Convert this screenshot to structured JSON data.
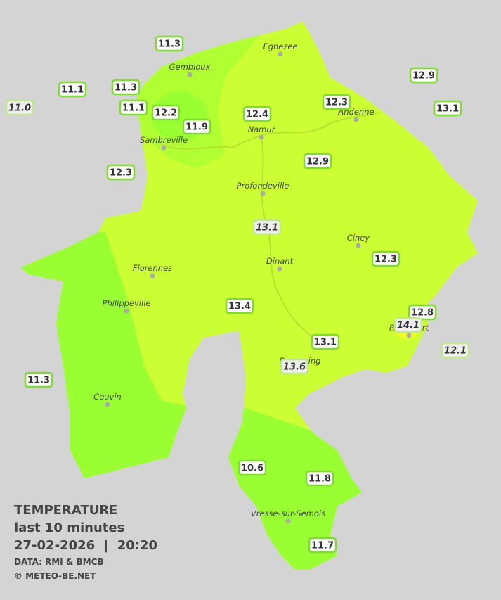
{
  "map": {
    "stations": [
      {
        "value": "11.3",
        "italic": false
      },
      {
        "value": "11.1",
        "italic": false
      },
      {
        "value": "11.3",
        "italic": false
      },
      {
        "value": "11.0",
        "italic": true
      },
      {
        "value": "11.1",
        "italic": false
      },
      {
        "value": "12.2",
        "italic": false
      },
      {
        "value": "11.9",
        "italic": false
      },
      {
        "value": "12.4",
        "italic": false
      },
      {
        "value": "12.3",
        "italic": false
      },
      {
        "value": "12.9",
        "italic": false
      },
      {
        "value": "13.1",
        "italic": false
      },
      {
        "value": "12.3",
        "italic": false
      },
      {
        "value": "12.9",
        "italic": false
      },
      {
        "value": "13.1",
        "italic": true
      },
      {
        "value": "12.3",
        "italic": false
      },
      {
        "value": "13.4",
        "italic": false
      },
      {
        "value": "12.8",
        "italic": false
      },
      {
        "value": "14.1",
        "italic": true
      },
      {
        "value": "12.1",
        "italic": true
      },
      {
        "value": "13.1",
        "italic": false
      },
      {
        "value": "13.6",
        "italic": true
      },
      {
        "value": "11.3",
        "italic": false
      },
      {
        "value": "10.6",
        "italic": false
      },
      {
        "value": "11.8",
        "italic": false
      },
      {
        "value": "11.7",
        "italic": false
      }
    ],
    "cities": [
      "Eghezee",
      "Gembloux",
      "Andenne",
      "Namur",
      "Sambreville",
      "Profondeville",
      "Ciney",
      "Dinant",
      "Florennes",
      "Philippeville",
      "Rochefort",
      "Beauraing",
      "Couvin",
      "Vresse-sur-Semois"
    ],
    "legend": {
      "title": "TEMPERATURE",
      "subtitle": "last 10 minutes",
      "datetime": "27-02-2026  |  20:20",
      "source": "DATA: RMI & BMCB",
      "copyright": "© METEO-BE.NET"
    }
  }
}
